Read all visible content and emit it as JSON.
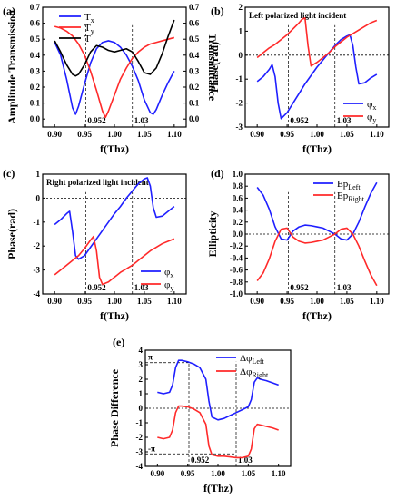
{
  "chart_data": [
    {
      "panel_label": "(a)",
      "type": "line",
      "xlabel": "f(Thz)",
      "ylabel": "Amplitude Transmission",
      "ylabel_right": "Transmittance",
      "xlim": [
        0.88,
        1.12
      ],
      "ylim": [
        -0.05,
        0.7
      ],
      "ylim_right": [
        -0.05,
        0.7
      ],
      "xticks": [
        "0.90",
        "0.95",
        "1.00",
        "1.05",
        "1.10"
      ],
      "yticks": [
        "0.0",
        "0.1",
        "0.2",
        "0.3",
        "0.4",
        "0.5",
        "0.6",
        "0.7"
      ],
      "yticks_right": [
        "0.0",
        "0.1",
        "0.2",
        "0.3",
        "0.4",
        "0.5",
        "0.6",
        "0.7"
      ],
      "annotations": [
        {
          "text": "0.952",
          "x": 0.952
        },
        {
          "text": "1.03",
          "x": 1.03
        }
      ],
      "legend": [
        {
          "name": "T",
          "sub": "x",
          "color": "#1f1fff"
        },
        {
          "name": "T",
          "sub": "y",
          "color": "#ff2a2a"
        },
        {
          "name": "T",
          "sub": "",
          "color": "#000000"
        }
      ],
      "series": [
        {
          "color": "#1f1fff",
          "x": [
            0.9,
            0.91,
            0.92,
            0.93,
            0.935,
            0.94,
            0.95,
            0.96,
            0.97,
            0.98,
            0.99,
            1.0,
            1.01,
            1.02,
            1.03,
            1.04,
            1.05,
            1.06,
            1.065,
            1.07,
            1.08,
            1.09,
            1.1
          ],
          "y": [
            0.48,
            0.4,
            0.25,
            0.07,
            0.03,
            0.08,
            0.22,
            0.35,
            0.44,
            0.48,
            0.49,
            0.48,
            0.45,
            0.4,
            0.33,
            0.24,
            0.12,
            0.04,
            0.03,
            0.06,
            0.15,
            0.23,
            0.3
          ]
        },
        {
          "color": "#ff2a2a",
          "x": [
            0.9,
            0.91,
            0.92,
            0.93,
            0.94,
            0.95,
            0.96,
            0.97,
            0.98,
            0.985,
            0.99,
            1.0,
            1.01,
            1.02,
            1.03,
            1.04,
            1.05,
            1.06,
            1.07,
            1.08,
            1.09,
            1.1
          ],
          "y": [
            0.58,
            0.57,
            0.55,
            0.52,
            0.47,
            0.4,
            0.3,
            0.18,
            0.05,
            0.01,
            0.05,
            0.15,
            0.25,
            0.32,
            0.38,
            0.42,
            0.45,
            0.47,
            0.48,
            0.49,
            0.5,
            0.51
          ]
        },
        {
          "color": "#000000",
          "x": [
            0.9,
            0.91,
            0.92,
            0.93,
            0.935,
            0.94,
            0.95,
            0.96,
            0.97,
            0.98,
            0.99,
            1.0,
            1.01,
            1.02,
            1.03,
            1.04,
            1.05,
            1.06,
            1.07,
            1.08,
            1.09,
            1.1
          ],
          "y": [
            0.49,
            0.42,
            0.34,
            0.28,
            0.27,
            0.28,
            0.34,
            0.42,
            0.46,
            0.45,
            0.43,
            0.42,
            0.43,
            0.44,
            0.42,
            0.36,
            0.29,
            0.28,
            0.32,
            0.41,
            0.52,
            0.62
          ]
        }
      ]
    },
    {
      "panel_label": "(b)",
      "type": "line",
      "title": "Left polarized light incident",
      "xlabel": "f(Thz)",
      "ylabel": "Phase(rad)",
      "xlim": [
        0.88,
        1.12
      ],
      "ylim": [
        -3,
        2
      ],
      "xticks": [
        "0.90",
        "0.95",
        "1.00",
        "1.05",
        "1.10"
      ],
      "yticks": [
        "-3",
        "-2",
        "-1",
        "0",
        "1",
        "2"
      ],
      "annotations": [
        {
          "text": "0.952",
          "x": 0.952
        },
        {
          "text": "1.03",
          "x": 1.03
        }
      ],
      "legend": [
        {
          "name": "φ",
          "sub": "x",
          "color": "#1f1fff"
        },
        {
          "name": "φ",
          "sub": "y",
          "color": "#ff2a2a"
        }
      ],
      "series": [
        {
          "color": "#1f1fff",
          "x": [
            0.9,
            0.91,
            0.92,
            0.925,
            0.93,
            0.935,
            0.94,
            0.95,
            0.96,
            0.97,
            0.98,
            0.99,
            1.0,
            1.01,
            1.02,
            1.03,
            1.04,
            1.05,
            1.055,
            1.06,
            1.065,
            1.07,
            1.08,
            1.09,
            1.1
          ],
          "y": [
            -1.1,
            -0.9,
            -0.6,
            -0.4,
            -0.9,
            -2.0,
            -2.65,
            -2.4,
            -2.0,
            -1.6,
            -1.2,
            -0.85,
            -0.5,
            -0.2,
            0.1,
            0.4,
            0.65,
            0.8,
            0.85,
            0.4,
            -0.5,
            -1.2,
            -1.15,
            -0.95,
            -0.8
          ]
        },
        {
          "color": "#ff2a2a",
          "x": [
            0.9,
            0.91,
            0.92,
            0.93,
            0.94,
            0.95,
            0.96,
            0.97,
            0.975,
            0.98,
            0.985,
            0.99,
            1.0,
            1.01,
            1.02,
            1.03,
            1.04,
            1.05,
            1.06,
            1.07,
            1.08,
            1.09,
            1.1
          ],
          "y": [
            -0.1,
            0.1,
            0.3,
            0.45,
            0.65,
            0.85,
            1.1,
            1.35,
            1.5,
            1.55,
            0.4,
            -0.45,
            -0.3,
            -0.1,
            0.1,
            0.35,
            0.55,
            0.75,
            0.9,
            1.05,
            1.2,
            1.35,
            1.45
          ]
        }
      ]
    },
    {
      "panel_label": "(c)",
      "type": "line",
      "title": "Right polarized light incident",
      "xlabel": "f(Thz)",
      "ylabel": "Phase(rad)",
      "xlim": [
        0.88,
        1.12
      ],
      "ylim": [
        -4,
        1
      ],
      "xticks": [
        "0.90",
        "0.95",
        "1.00",
        "1.05",
        "1.10"
      ],
      "yticks": [
        "-4",
        "-3",
        "-2",
        "-1",
        "0",
        "1"
      ],
      "annotations": [
        {
          "text": "0.952",
          "x": 0.952
        },
        {
          "text": "1.03",
          "x": 1.03
        }
      ],
      "legend": [
        {
          "name": "φ",
          "sub": "x",
          "color": "#1f1fff"
        },
        {
          "name": "φ",
          "sub": "y",
          "color": "#ff2a2a"
        }
      ],
      "series": [
        {
          "color": "#1f1fff",
          "x": [
            0.9,
            0.91,
            0.92,
            0.925,
            0.93,
            0.935,
            0.94,
            0.95,
            0.96,
            0.97,
            0.98,
            0.99,
            1.0,
            1.01,
            1.02,
            1.03,
            1.04,
            1.05,
            1.055,
            1.06,
            1.065,
            1.07,
            1.08,
            1.09,
            1.1
          ],
          "y": [
            -1.1,
            -0.9,
            -0.65,
            -0.55,
            -1.4,
            -2.4,
            -2.55,
            -2.4,
            -2.05,
            -1.7,
            -1.35,
            -1.0,
            -0.65,
            -0.35,
            0.0,
            0.3,
            0.6,
            0.8,
            0.85,
            0.5,
            -0.4,
            -0.8,
            -0.75,
            -0.55,
            -0.35
          ]
        },
        {
          "color": "#ff2a2a",
          "x": [
            0.9,
            0.91,
            0.92,
            0.93,
            0.94,
            0.95,
            0.96,
            0.965,
            0.97,
            0.975,
            0.98,
            0.99,
            1.0,
            1.01,
            1.02,
            1.03,
            1.04,
            1.05,
            1.06,
            1.07,
            1.08,
            1.09,
            1.1
          ],
          "y": [
            -3.2,
            -3.0,
            -2.8,
            -2.6,
            -2.4,
            -2.1,
            -1.75,
            -1.6,
            -2.2,
            -3.3,
            -3.6,
            -3.5,
            -3.3,
            -3.1,
            -2.95,
            -2.8,
            -2.6,
            -2.4,
            -2.2,
            -2.05,
            -1.9,
            -1.8,
            -1.7
          ]
        }
      ]
    },
    {
      "panel_label": "(d)",
      "type": "line",
      "xlabel": "f(Thz)",
      "ylabel": "Ellipticity",
      "xlim": [
        0.88,
        1.12
      ],
      "ylim": [
        -1.0,
        1.0
      ],
      "xticks": [
        "0.90",
        "0.95",
        "1.00",
        "1.05",
        "1.10"
      ],
      "yticks": [
        "-1.0",
        "-0.8",
        "-0.6",
        "-0.4",
        "-0.2",
        "0.0",
        "0.2",
        "0.4",
        "0.6",
        "0.8",
        "1.0"
      ],
      "annotations": [
        {
          "text": "0.952",
          "x": 0.952
        },
        {
          "text": "1.03",
          "x": 1.03
        }
      ],
      "legend": [
        {
          "name": "Ep",
          "sub": "Left",
          "color": "#1f1fff"
        },
        {
          "name": "Ep",
          "sub": "Right",
          "color": "#ff2a2a"
        }
      ],
      "series": [
        {
          "color": "#1f1fff",
          "x": [
            0.9,
            0.91,
            0.92,
            0.93,
            0.94,
            0.95,
            0.96,
            0.97,
            0.98,
            0.99,
            1.0,
            1.01,
            1.02,
            1.03,
            1.04,
            1.05,
            1.06,
            1.07,
            1.08,
            1.09,
            1.1
          ],
          "y": [
            0.78,
            0.65,
            0.42,
            0.12,
            -0.08,
            -0.1,
            0.05,
            0.12,
            0.15,
            0.14,
            0.12,
            0.1,
            0.05,
            0.0,
            -0.08,
            -0.1,
            0.0,
            0.2,
            0.45,
            0.68,
            0.86
          ]
        },
        {
          "color": "#ff2a2a",
          "x": [
            0.9,
            0.91,
            0.92,
            0.93,
            0.94,
            0.95,
            0.96,
            0.97,
            0.98,
            0.99,
            1.0,
            1.01,
            1.02,
            1.03,
            1.04,
            1.05,
            1.06,
            1.07,
            1.08,
            1.09,
            1.1
          ],
          "y": [
            -0.78,
            -0.65,
            -0.42,
            -0.12,
            0.08,
            0.1,
            -0.05,
            -0.12,
            -0.15,
            -0.14,
            -0.12,
            -0.1,
            -0.05,
            0.0,
            0.08,
            0.1,
            0.0,
            -0.2,
            -0.45,
            -0.68,
            -0.86
          ]
        }
      ]
    },
    {
      "panel_label": "(e)",
      "type": "line",
      "xlabel": "f(Thz)",
      "ylabel": "Phase Difference",
      "xlim": [
        0.88,
        1.12
      ],
      "ylim": [
        -4,
        4
      ],
      "xticks": [
        "0.90",
        "0.95",
        "1.00",
        "1.05",
        "1.10"
      ],
      "yticks": [
        "-4",
        "-3",
        "-2",
        "-1",
        "0",
        "1",
        "2",
        "3",
        "4"
      ],
      "pi_labels": [
        {
          "text": "π",
          "y": 3.1416
        },
        {
          "text": "-π",
          "y": -3.1416
        }
      ],
      "annotations": [
        {
          "text": "0.952",
          "x": 0.952
        },
        {
          "text": "1.03",
          "x": 1.03
        }
      ],
      "legend": [
        {
          "name": "Δφ",
          "sub": "Left",
          "color": "#1f1fff"
        },
        {
          "name": "Δφ",
          "sub": "Right",
          "color": "#ff2a2a"
        }
      ],
      "series": [
        {
          "color": "#1f1fff",
          "x": [
            0.9,
            0.91,
            0.92,
            0.925,
            0.93,
            0.935,
            0.94,
            0.95,
            0.96,
            0.97,
            0.98,
            0.985,
            0.99,
            1.0,
            1.01,
            1.02,
            1.03,
            1.04,
            1.05,
            1.055,
            1.06,
            1.065,
            1.07,
            1.08,
            1.09,
            1.1
          ],
          "y": [
            1.1,
            1.0,
            1.1,
            1.6,
            2.8,
            3.3,
            3.3,
            3.2,
            3.05,
            2.8,
            2.0,
            0.5,
            -0.6,
            -0.8,
            -0.7,
            -0.5,
            -0.3,
            -0.1,
            0.1,
            0.6,
            1.8,
            2.1,
            2.0,
            1.9,
            1.75,
            1.6
          ]
        },
        {
          "color": "#ff2a2a",
          "x": [
            0.9,
            0.91,
            0.92,
            0.925,
            0.93,
            0.935,
            0.94,
            0.95,
            0.96,
            0.97,
            0.98,
            0.985,
            0.99,
            1.0,
            1.01,
            1.02,
            1.03,
            1.04,
            1.05,
            1.055,
            1.06,
            1.065,
            1.07,
            1.08,
            1.09,
            1.1
          ],
          "y": [
            -2.0,
            -2.1,
            -2.0,
            -1.5,
            -0.3,
            0.15,
            0.15,
            0.1,
            -0.05,
            -0.3,
            -1.1,
            -2.6,
            -3.2,
            -3.3,
            -3.3,
            -3.35,
            -3.4,
            -3.4,
            -3.3,
            -2.8,
            -1.4,
            -1.1,
            -1.15,
            -1.25,
            -1.35,
            -1.5
          ]
        }
      ]
    }
  ]
}
